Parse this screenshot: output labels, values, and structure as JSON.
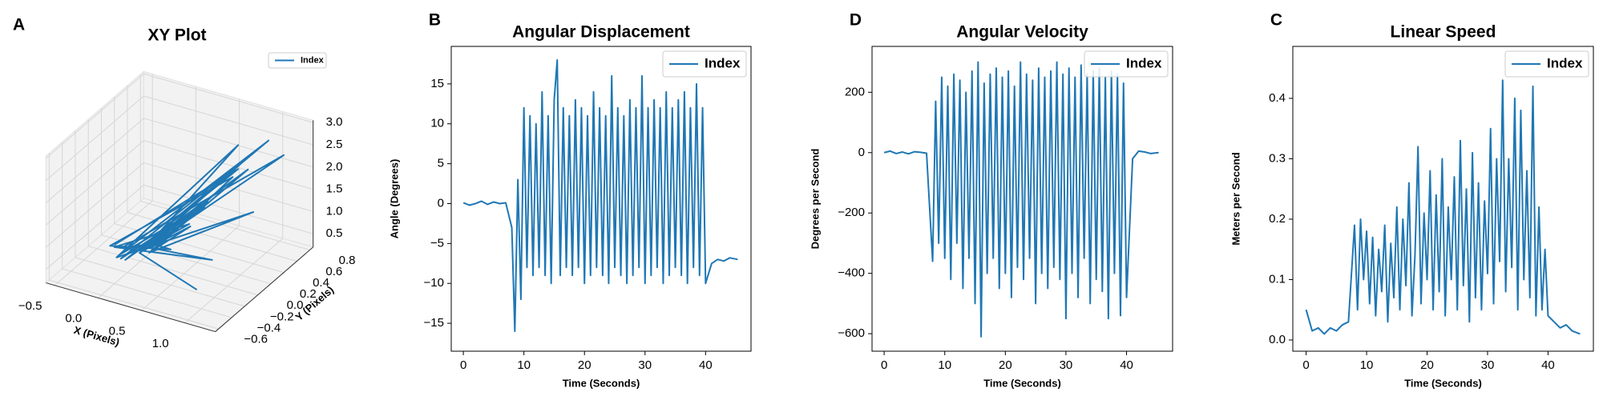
{
  "chart_data": [
    {
      "type": "line3d",
      "panel_label": "A",
      "title": "XY Plot",
      "xlabel": "X (Pixels)",
      "ylabel": "Y (Pixels)",
      "xlim": [
        -0.6,
        1.35
      ],
      "ylim": [
        -0.65,
        0.85
      ],
      "zlim": [
        0.2,
        3.05
      ],
      "xticks": [
        {
          "value": -0.5,
          "label": "−0.5"
        },
        {
          "value": 0,
          "label": "0.0"
        },
        0.5,
        {
          "value": 1,
          "label": "1.0"
        }
      ],
      "yticks": [
        {
          "value": -0.6,
          "label": "−0.6"
        },
        {
          "value": -0.4,
          "label": "−0.4"
        },
        {
          "value": -0.2,
          "label": "−0.2"
        },
        {
          "value": 0,
          "label": "0.0"
        },
        0.2,
        0.4,
        0.6,
        0.8
      ],
      "zticks": [
        0.5,
        {
          "value": 1,
          "label": "1.0"
        },
        1.5,
        {
          "value": 2,
          "label": "2.0"
        },
        2.5,
        {
          "value": 3,
          "label": "3.0"
        }
      ],
      "grid": true,
      "legend": "upper right",
      "series": [
        {
          "name": "Index",
          "color": "#1f77b4",
          "x": [
            -0.3,
            0.9,
            -0.1,
            0.6,
            0.0,
            1.1,
            -0.2,
            0.4,
            0.1,
            0.8,
            -0.35,
            0.5,
            0.05,
            1.0,
            -0.15,
            0.7,
            0.0,
            1.2,
            -0.25,
            0.3,
            0.1,
            0.9,
            -0.1,
            0.55,
            0.05,
            1.05,
            -0.3,
            0.45,
            0.0,
            0.75,
            -0.2,
            1.15,
            0.1,
            0.35,
            -0.05,
            0.95
          ],
          "y": [
            0.0,
            0.3,
            -0.1,
            0.2,
            0.1,
            0.5,
            -0.05,
            0.0,
            0.05,
            0.35,
            0.0,
            -0.2,
            0.1,
            0.4,
            -0.1,
            0.1,
            0.0,
            0.6,
            0.05,
            -0.1,
            0.0,
            0.45,
            -0.05,
            0.25,
            0.1,
            -0.3,
            0.0,
            0.15,
            0.05,
            0.5,
            -0.1,
            0.2,
            0.0,
            0.3,
            0.05,
            -0.4
          ],
          "z": [
            0.4,
            2.4,
            0.3,
            1.6,
            0.5,
            2.9,
            0.3,
            1.3,
            0.4,
            2.1,
            0.35,
            1.0,
            0.5,
            2.7,
            0.3,
            1.8,
            0.4,
            2.5,
            0.3,
            0.9,
            0.45,
            2.2,
            0.3,
            1.4,
            0.4,
            1.2,
            0.35,
            1.1,
            0.4,
            2.6,
            0.3,
            1.7,
            0.45,
            0.8,
            0.3,
            0.6
          ]
        }
      ]
    },
    {
      "type": "line",
      "panel_label": "B",
      "title": "Angular Displacement",
      "xlabel": "Time (Seconds)",
      "ylabel": "Angle (Degrees)",
      "xlim": [
        -2,
        47.5
      ],
      "ylim": [
        -18.5,
        19.7
      ],
      "xticks": [
        0,
        10,
        20,
        30,
        40
      ],
      "yticks": [
        {
          "value": -15,
          "label": "−15"
        },
        {
          "value": -10,
          "label": "−10"
        },
        {
          "value": -5,
          "label": "−5"
        },
        0,
        5,
        10,
        15
      ],
      "legend": "upper right",
      "x": [
        0,
        1,
        2,
        3,
        4,
        5,
        6,
        7,
        8,
        8.5,
        9,
        9.5,
        10,
        10.5,
        11,
        11.5,
        12,
        12.5,
        13,
        13.5,
        14,
        14.5,
        15,
        15.5,
        16,
        16.5,
        17,
        17.5,
        18,
        18.5,
        19,
        19.5,
        20,
        20.5,
        21,
        21.5,
        22,
        22.5,
        23,
        23.5,
        24,
        24.5,
        25,
        25.5,
        26,
        26.5,
        27,
        27.5,
        28,
        28.5,
        29,
        29.5,
        30,
        30.5,
        31,
        31.5,
        32,
        32.5,
        33,
        33.5,
        34,
        34.5,
        35,
        35.5,
        36,
        36.5,
        37,
        37.5,
        38,
        38.5,
        39,
        39.5,
        40,
        41,
        42,
        43,
        44,
        45.3
      ],
      "series": [
        {
          "name": "Index",
          "color": "#1f77b4",
          "values": [
            0.1,
            -0.2,
            0,
            0.3,
            -0.1,
            0.2,
            0,
            0.1,
            -3,
            -16,
            3,
            -12,
            12,
            -8,
            11,
            -9,
            10,
            -8,
            14,
            -9,
            11,
            -10,
            13,
            18,
            -9,
            12,
            -8,
            11,
            -9,
            13,
            -8,
            12,
            -10,
            11,
            -9,
            14,
            -8,
            12,
            -9,
            11,
            -10,
            16,
            -8,
            12,
            -9,
            11,
            -10,
            13,
            -9,
            12,
            -8,
            16,
            -10,
            12,
            -9,
            13,
            -8,
            12,
            -10,
            14,
            -9,
            12,
            -8,
            13,
            -9,
            14,
            -10,
            12,
            -8,
            15,
            -9,
            12,
            -10,
            -7.5,
            -7,
            -7.2,
            -6.8,
            -7
          ]
        }
      ]
    },
    {
      "type": "line",
      "panel_label": "D",
      "title": "Angular Velocity",
      "xlabel": "Time (Seconds)",
      "ylabel": "Degrees per Second",
      "xlim": [
        -2,
        47.6
      ],
      "ylim": [
        -658,
        352
      ],
      "xticks": [
        0,
        10,
        20,
        30,
        40
      ],
      "yticks": [
        {
          "value": -600,
          "label": "−600"
        },
        {
          "value": -400,
          "label": "−400"
        },
        {
          "value": -200,
          "label": "−200"
        },
        0,
        200
      ],
      "legend": "upper right",
      "x": [
        0,
        1,
        2,
        3,
        4,
        5,
        6,
        7,
        8,
        8.5,
        9,
        9.5,
        10,
        10.5,
        11,
        11.5,
        12,
        12.5,
        13,
        13.5,
        14,
        14.5,
        15,
        15.5,
        16,
        16.5,
        17,
        17.5,
        18,
        18.5,
        19,
        19.5,
        20,
        20.5,
        21,
        21.5,
        22,
        22.5,
        23,
        23.5,
        24,
        24.5,
        25,
        25.5,
        26,
        26.5,
        27,
        27.5,
        28,
        28.5,
        29,
        29.5,
        30,
        30.5,
        31,
        31.5,
        32,
        32.5,
        33,
        33.5,
        34,
        34.5,
        35,
        35.5,
        36,
        36.5,
        37,
        37.5,
        38,
        38.5,
        39,
        39.5,
        40,
        41,
        42,
        43,
        44,
        45.3
      ],
      "series": [
        {
          "name": "Index",
          "color": "#1f77b4",
          "values": [
            0,
            5,
            -3,
            2,
            -4,
            3,
            1,
            -2,
            -360,
            170,
            -300,
            250,
            -350,
            220,
            -420,
            260,
            -300,
            240,
            -450,
            200,
            -350,
            270,
            -500,
            300,
            -610,
            230,
            -400,
            260,
            -350,
            280,
            -450,
            250,
            -400,
            270,
            -480,
            220,
            -380,
            300,
            -420,
            260,
            -350,
            240,
            -500,
            280,
            -400,
            250,
            -450,
            270,
            -380,
            300,
            -420,
            260,
            -550,
            280,
            -400,
            250,
            -480,
            290,
            -350,
            260,
            -500,
            270,
            -420,
            280,
            -460,
            250,
            -550,
            270,
            -400,
            260,
            -540,
            230,
            -480,
            -20,
            5,
            2,
            -3,
            0
          ]
        }
      ]
    },
    {
      "type": "line",
      "panel_label": "C",
      "title": "Linear Speed",
      "xlabel": "Time (Seconds)",
      "ylabel": "Meters per Second",
      "xlim": [
        -2.2,
        47.5
      ],
      "ylim": [
        -0.0186,
        0.486
      ],
      "xticks": [
        0,
        10,
        20,
        30,
        40
      ],
      "yticks": [
        {
          "value": 0,
          "label": "0.0"
        },
        0.1,
        0.2,
        0.3,
        0.4
      ],
      "legend": "upper right",
      "x": [
        0,
        1,
        2,
        3,
        4,
        5,
        6,
        7,
        8,
        8.5,
        9,
        9.5,
        10,
        10.5,
        11,
        11.5,
        12,
        12.5,
        13,
        13.5,
        14,
        14.5,
        15,
        15.5,
        16,
        16.5,
        17,
        17.5,
        18,
        18.5,
        19,
        19.5,
        20,
        20.5,
        21,
        21.5,
        22,
        22.5,
        23,
        23.5,
        24,
        24.5,
        25,
        25.5,
        26,
        26.5,
        27,
        27.5,
        28,
        28.5,
        29,
        29.5,
        30,
        30.5,
        31,
        31.5,
        32,
        32.5,
        33,
        33.5,
        34,
        34.5,
        35,
        35.5,
        36,
        36.5,
        37,
        37.5,
        38,
        38.5,
        39,
        39.5,
        40,
        41,
        42,
        43,
        44,
        45.3
      ],
      "series": [
        {
          "name": "Index",
          "color": "#1f77b4",
          "values": [
            0.05,
            0.015,
            0.02,
            0.01,
            0.02,
            0.015,
            0.025,
            0.03,
            0.19,
            0.05,
            0.2,
            0.1,
            0.18,
            0.06,
            0.17,
            0.04,
            0.15,
            0.08,
            0.19,
            0.03,
            0.16,
            0.07,
            0.22,
            0.05,
            0.2,
            0.09,
            0.26,
            0.04,
            0.14,
            0.32,
            0.06,
            0.21,
            0.1,
            0.28,
            0.05,
            0.24,
            0.08,
            0.3,
            0.04,
            0.22,
            0.1,
            0.27,
            0.05,
            0.33,
            0.09,
            0.25,
            0.03,
            0.31,
            0.07,
            0.26,
            0.05,
            0.23,
            0.11,
            0.35,
            0.06,
            0.3,
            0.13,
            0.43,
            0.08,
            0.3,
            0.12,
            0.4,
            0.05,
            0.38,
            0.1,
            0.28,
            0.07,
            0.42,
            0.04,
            0.22,
            0.05,
            0.15,
            0.04,
            0.03,
            0.02,
            0.025,
            0.015,
            0.01
          ]
        }
      ]
    }
  ]
}
